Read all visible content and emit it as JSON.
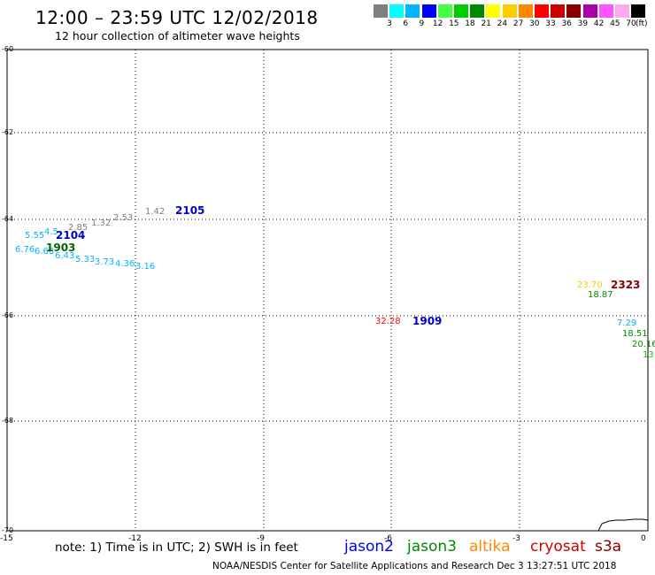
{
  "header": {
    "title": "12:00 – 23:59 UTC 12/02/2018",
    "subtitle": "12 hour collection of altimeter wave heights"
  },
  "colorbar": {
    "unit": "(ft)",
    "swatches": [
      {
        "color": "#7f7f7f",
        "label": "3"
      },
      {
        "color": "#00ffff",
        "label": "6"
      },
      {
        "color": "#00b4ff",
        "label": "9"
      },
      {
        "color": "#0000ff",
        "label": "12"
      },
      {
        "color": "#44ff44",
        "label": "15"
      },
      {
        "color": "#00cc00",
        "label": "18"
      },
      {
        "color": "#008800",
        "label": "21"
      },
      {
        "color": "#ffff00",
        "label": "24"
      },
      {
        "color": "#ffcc00",
        "label": "27"
      },
      {
        "color": "#ff8800",
        "label": "30"
      },
      {
        "color": "#ff0000",
        "label": "33"
      },
      {
        "color": "#cc0000",
        "label": "36"
      },
      {
        "color": "#880000",
        "label": "39"
      },
      {
        "color": "#aa00aa",
        "label": "42"
      },
      {
        "color": "#ff55ff",
        "label": "45"
      },
      {
        "color": "#ffaaee",
        "label": "70"
      },
      {
        "color": "#000000",
        "label": ""
      }
    ]
  },
  "axes": {
    "lat_labels": [
      "-60",
      "-62",
      "-64",
      "-66",
      "-68",
      "-70"
    ],
    "lon_labels": [
      "-15",
      "-12",
      "-9",
      "-6",
      "-3",
      "0"
    ]
  },
  "observations": [
    {
      "text": "1.42",
      "color": "#7f7f7f"
    },
    {
      "text": "2.53",
      "color": "#7f7f7f"
    },
    {
      "text": "1.32",
      "color": "#7f7f7f"
    },
    {
      "text": "2.85",
      "color": "#7f7f7f"
    },
    {
      "text": "4.5",
      "color": "#00b4ff"
    },
    {
      "text": "5.55",
      "color": "#00b4ff"
    },
    {
      "text": "6.76",
      "color": "#00b4ff"
    },
    {
      "text": "6.68",
      "color": "#00b4ff"
    },
    {
      "text": "6.43",
      "color": "#00b4ff"
    },
    {
      "text": "5.33",
      "color": "#00b4ff"
    },
    {
      "text": "3.73",
      "color": "#00b4ff"
    },
    {
      "text": "4.36",
      "color": "#00b4ff"
    },
    {
      "text": "3.16",
      "color": "#00b4ff"
    },
    {
      "text": "32.28",
      "color": "#ff0000"
    },
    {
      "text": "23.70",
      "color": "#ffcc00"
    },
    {
      "text": "18.87",
      "color": "#008800"
    },
    {
      "text": "7.29",
      "color": "#00b4ff"
    },
    {
      "text": "18.51",
      "color": "#008800"
    },
    {
      "text": "20.16",
      "color": "#008800"
    },
    {
      "text": "13",
      "color": "#00cc00"
    }
  ],
  "pass_times": [
    {
      "text": "2105",
      "color": "#0000cc"
    },
    {
      "text": "2104",
      "color": "#0000cc"
    },
    {
      "text": "1903",
      "color": "#006600"
    },
    {
      "text": "1909",
      "color": "#0000cc"
    },
    {
      "text": "2323",
      "color": "#880000"
    }
  ],
  "note": "note:  1)  Time is in UTC;  2)  SWH is in feet",
  "legend": [
    {
      "text": "jason2",
      "color": "#0000ff"
    },
    {
      "text": "jason3",
      "color": "#008800"
    },
    {
      "text": "altika",
      "color": "#ff8800"
    },
    {
      "text": "cryosat",
      "color": "#cc0000"
    },
    {
      "text": "s3a",
      "color": "#880000"
    }
  ],
  "footer": "NOAA/NESDIS Center for Satellite Applications and Research     Dec  3 13:27:51 UTC 2018"
}
